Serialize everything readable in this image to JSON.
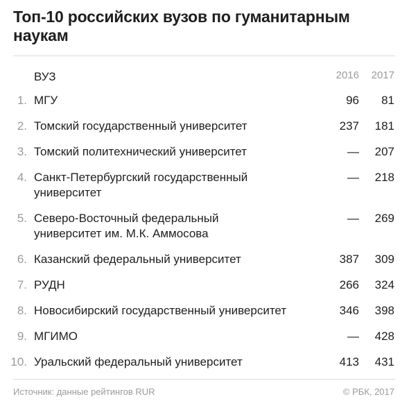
{
  "title": "Топ-10 российских вузов по гуманитарным наукам",
  "header": {
    "name": "ВУЗ",
    "y1": "2016",
    "y2": "2017"
  },
  "rows": [
    {
      "num": "1.",
      "name": "МГУ",
      "v2016": "96",
      "v2017": "81"
    },
    {
      "num": "2.",
      "name": "Томский государственный университет",
      "v2016": "237",
      "v2017": "181"
    },
    {
      "num": "3.",
      "name": "Томский политехнический университет",
      "v2016": "—",
      "v2017": "207"
    },
    {
      "num": "4.",
      "name": "Санкт-Петербургский государственный университет",
      "v2016": "—",
      "v2017": "218"
    },
    {
      "num": "5.",
      "name": "Северо-Восточный федеральный университет им. М.К. Аммосова",
      "v2016": "—",
      "v2017": "269"
    },
    {
      "num": "6.",
      "name": "Казанский федеральный университет",
      "v2016": "387",
      "v2017": "309"
    },
    {
      "num": "7.",
      "name": "РУДН",
      "v2016": "266",
      "v2017": "324"
    },
    {
      "num": "8.",
      "name": "Новосибирский государственный университет",
      "v2016": "346",
      "v2017": "398"
    },
    {
      "num": "9.",
      "name": "МГИМО",
      "v2016": "—",
      "v2017": "428"
    },
    {
      "num": "10.",
      "name": "Уральский федеральный университет",
      "v2016": "413",
      "v2017": "431"
    }
  ],
  "footer": {
    "source": "Источник: данные рейтингов RUR",
    "copyright": "© РБК, 2017"
  }
}
